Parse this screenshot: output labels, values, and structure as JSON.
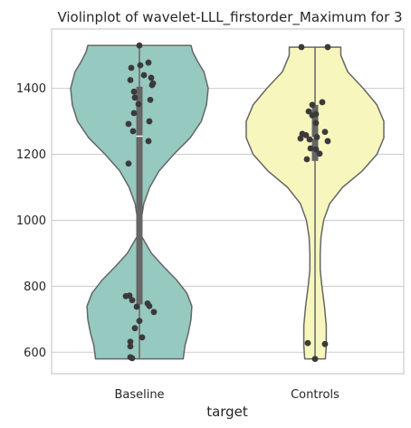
{
  "chart_data": {
    "type": "violin",
    "title": "Violinplot of wavelet-LLL_firstorder_Maximum for 3",
    "xlabel": "target",
    "ylabel": "",
    "categories": [
      "Baseline",
      "Controls"
    ],
    "ylim": [
      535,
      1580
    ],
    "yticks": [
      600,
      800,
      1000,
      1200,
      1400
    ],
    "grid": "horizontal",
    "colors": {
      "Baseline": "#96c9c0",
      "Controls": "#f7f6bc",
      "outline": "#666666",
      "points": "#3a3a3a",
      "box": "#666666",
      "grid": "#cccccc"
    },
    "violins": [
      {
        "category": "Baseline",
        "range": [
          580,
          1530
        ],
        "quartiles": [
          745,
          1255,
          1405
        ],
        "density": [
          [
            580,
            0.51
          ],
          [
            620,
            0.53
          ],
          [
            660,
            0.57
          ],
          [
            700,
            0.6
          ],
          [
            740,
            0.61
          ],
          [
            780,
            0.55
          ],
          [
            820,
            0.43
          ],
          [
            860,
            0.28
          ],
          [
            900,
            0.14
          ],
          [
            950,
            0.03
          ],
          [
            1000,
            0.02
          ],
          [
            1050,
            0.05
          ],
          [
            1100,
            0.12
          ],
          [
            1150,
            0.23
          ],
          [
            1200,
            0.4
          ],
          [
            1250,
            0.59
          ],
          [
            1300,
            0.72
          ],
          [
            1350,
            0.78
          ],
          [
            1400,
            0.8
          ],
          [
            1450,
            0.75
          ],
          [
            1480,
            0.68
          ],
          [
            1510,
            0.62
          ],
          [
            1530,
            0.6
          ]
        ]
      },
      {
        "category": "Controls",
        "range": [
          580,
          1525
        ],
        "quartiles": [
          1180,
          1250,
          1350
        ],
        "density": [
          [
            580,
            0.12
          ],
          [
            620,
            0.13
          ],
          [
            680,
            0.13
          ],
          [
            740,
            0.11
          ],
          [
            800,
            0.08
          ],
          [
            850,
            0.06
          ],
          [
            900,
            0.06
          ],
          [
            950,
            0.07
          ],
          [
            1000,
            0.1
          ],
          [
            1050,
            0.17
          ],
          [
            1100,
            0.32
          ],
          [
            1150,
            0.55
          ],
          [
            1200,
            0.72
          ],
          [
            1250,
            0.8
          ],
          [
            1300,
            0.8
          ],
          [
            1350,
            0.72
          ],
          [
            1400,
            0.56
          ],
          [
            1450,
            0.38
          ],
          [
            1500,
            0.3
          ],
          [
            1525,
            0.3
          ]
        ]
      }
    ],
    "points": [
      {
        "category": "Baseline",
        "values": [
          1530,
          1478,
          1470,
          1462,
          1440,
          1432,
          1425,
          1415,
          1410,
          1390,
          1372,
          1365,
          1352,
          1325,
          1300,
          1292,
          1270,
          1240,
          1172,
          770,
          772,
          758,
          748,
          740,
          738,
          722,
          695,
          673,
          645,
          632,
          618,
          585,
          582
        ],
        "jitter": [
          0.0,
          0.1,
          0.01,
          -0.09,
          0.05,
          0.13,
          -0.1,
          0.15,
          0.14,
          -0.06,
          -0.05,
          0.12,
          -0.01,
          -0.06,
          0.11,
          -0.12,
          -0.07,
          0.1,
          -0.12,
          -0.15,
          -0.11,
          -0.08,
          0.09,
          0.11,
          -0.03,
          0.16,
          0.0,
          -0.05,
          0.03,
          -0.1,
          -0.1,
          -0.1,
          -0.08
        ]
      },
      {
        "category": "Controls",
        "values": [
          1525,
          1525,
          1358,
          1350,
          1330,
          1322,
          1318,
          1295,
          1268,
          1262,
          1258,
          1252,
          1248,
          1245,
          1240,
          1218,
          1215,
          1202,
          1185,
          628,
          625,
          580
        ],
        "jitter": [
          -0.15,
          0.14,
          0.08,
          -0.03,
          -0.07,
          0.01,
          -0.03,
          0.01,
          0.11,
          -0.14,
          -0.1,
          0.02,
          -0.16,
          -0.06,
          0.14,
          -0.05,
          0.01,
          0.05,
          -0.09,
          -0.08,
          0.11,
          0.0
        ]
      }
    ]
  }
}
